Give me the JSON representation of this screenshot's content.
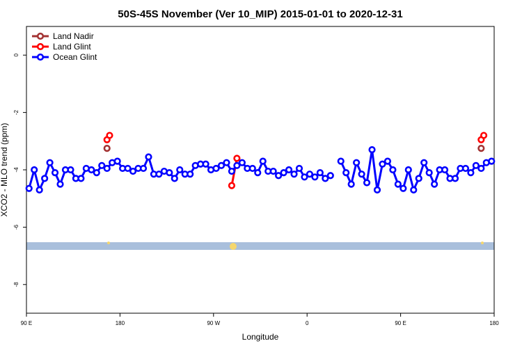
{
  "chart_data": {
    "type": "line",
    "title": "50S-45S November (Ver 10_MIP)   2015-01-01 to 2020-12-31",
    "xlabel": "Longitude",
    "ylabel": "XCO2 - MLO trend (ppm)",
    "xlim": [
      90,
      540
    ],
    "ylim": [
      -9,
      1
    ],
    "xticks": [
      {
        "value": 90,
        "label": "90 E"
      },
      180,
      {
        "value": 270,
        "label": "90 W"
      },
      {
        "value": 360,
        "label": "0"
      },
      {
        "value": 450,
        "label": "90 E"
      },
      {
        "value": 540,
        "label": "180"
      }
    ],
    "yticks": [
      0,
      -2,
      -4,
      -6,
      -8
    ],
    "legend": "top-left",
    "series": [
      {
        "name": "Land Nadir",
        "color": "#a33333",
        "x": [
          167.5,
          null,
          527.5
        ],
        "values": [
          -3.25,
          null,
          -3.25
        ]
      },
      {
        "name": "Land Glint",
        "color": "#ff0000",
        "x": [
          167.5,
          170,
          null,
          287.5,
          292.5,
          null,
          527.5,
          530
        ],
        "values": [
          -2.95,
          -2.8,
          null,
          -4.55,
          -3.6,
          null,
          -2.95,
          -2.8
        ]
      },
      {
        "name": "Ocean Glint",
        "color": "#0000ff",
        "x": [
          92.5,
          97.5,
          102.5,
          107.5,
          112.5,
          117.5,
          122.5,
          127.5,
          132.5,
          137.5,
          142.5,
          147.5,
          152.5,
          157.5,
          162.5,
          167.5,
          172.5,
          177.5,
          182.5,
          187.5,
          192.5,
          197.5,
          202.5,
          207.5,
          212.5,
          217.5,
          222.5,
          227.5,
          232.5,
          237.5,
          242.5,
          247.5,
          252.5,
          257.5,
          262.5,
          267.5,
          272.5,
          277.5,
          282.5,
          287.5,
          292.5,
          297.5,
          302.5,
          307.5,
          312.5,
          317.5,
          322.5,
          327.5,
          332.5,
          337.5,
          342.5,
          347.5,
          352.5,
          357.5,
          362.5,
          367.5,
          372.5,
          377.5,
          382.5,
          null,
          392.5,
          397.5,
          402.5,
          407.5,
          412.5,
          417.5,
          422.5,
          427.5,
          432.5,
          437.5,
          442.5,
          447.5,
          452.5,
          457.5,
          462.5,
          467.5,
          472.5,
          477.5,
          482.5,
          487.5,
          492.5,
          497.5,
          502.5,
          507.5,
          512.5,
          517.5,
          522.5,
          527.5,
          532.5,
          537.5
        ],
        "values": [
          -4.65,
          -4.0,
          -4.7,
          -4.3,
          -3.75,
          -4.1,
          -4.5,
          -4.0,
          -4.0,
          -4.3,
          -4.3,
          -3.95,
          -4.0,
          -4.1,
          -3.85,
          -3.95,
          -3.75,
          -3.7,
          -3.95,
          -3.95,
          -4.05,
          -3.95,
          -3.95,
          -3.55,
          -4.15,
          -4.15,
          -4.05,
          -4.1,
          -4.3,
          -4.0,
          -4.15,
          -4.15,
          -3.85,
          -3.8,
          -3.8,
          -4.0,
          -3.95,
          -3.85,
          -3.75,
          -4.05,
          -3.85,
          -3.75,
          -3.95,
          -3.95,
          -4.1,
          -3.7,
          -4.05,
          -4.05,
          -4.2,
          -4.1,
          -4.0,
          -4.15,
          -3.95,
          -4.25,
          -4.15,
          -4.25,
          -4.1,
          -4.3,
          -4.2,
          null,
          -3.7,
          -4.1,
          -4.5,
          -3.75,
          -4.15,
          -4.45,
          -3.3,
          -4.7,
          -3.8,
          -3.7,
          -4.0,
          -4.5,
          -4.65,
          -4.0,
          -4.7,
          -4.3,
          -3.75,
          -4.1,
          -4.5,
          -4.0,
          -4.0,
          -4.3,
          -4.3,
          -3.95,
          -3.95,
          -4.1,
          -3.85,
          -3.95,
          -3.75,
          -3.7
        ]
      }
    ]
  }
}
